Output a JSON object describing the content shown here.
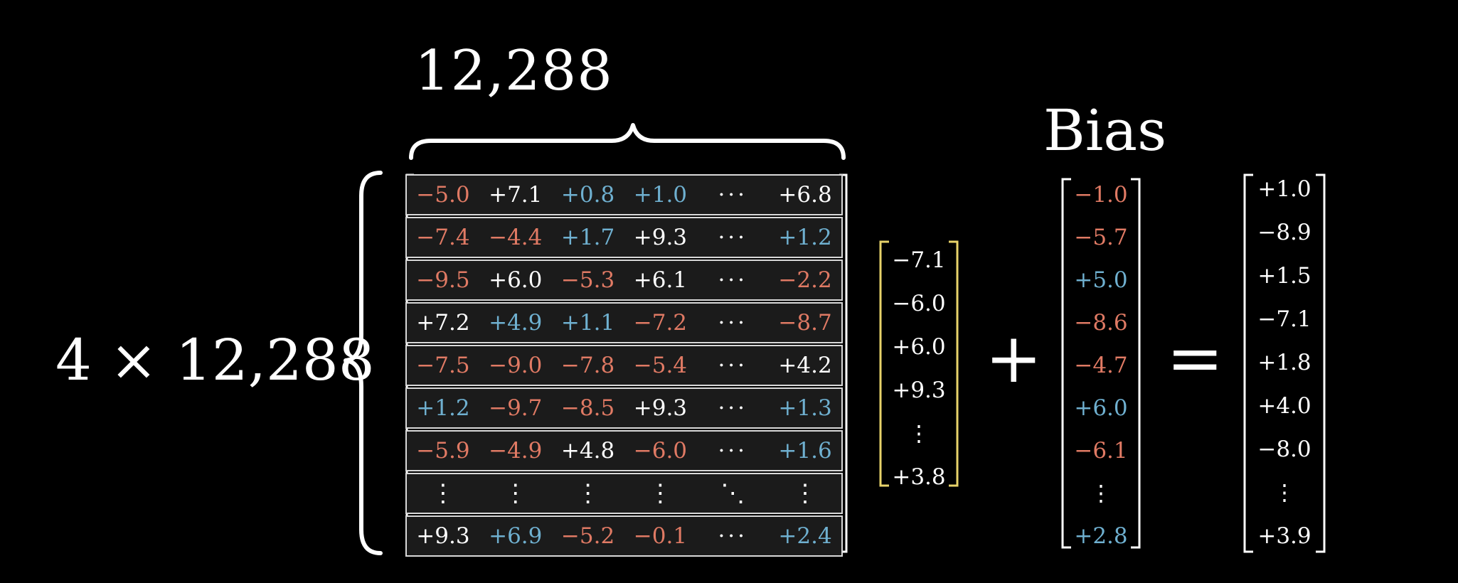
{
  "top_label": "12,288",
  "bias_label": "Bias",
  "dim_label": "4 × 12,288",
  "plus_sign": "+",
  "equals_sign": "=",
  "matrix_rows": [
    [
      {
        "t": "−5.0",
        "c": "neg"
      },
      {
        "t": "+7.1",
        "c": "posw"
      },
      {
        "t": "+0.8",
        "c": "pos"
      },
      {
        "t": "+1.0",
        "c": "pos"
      },
      {
        "t": "···",
        "c": "dots"
      },
      {
        "t": "+6.8",
        "c": "posw"
      }
    ],
    [
      {
        "t": "−7.4",
        "c": "neg"
      },
      {
        "t": "−4.4",
        "c": "neg"
      },
      {
        "t": "+1.7",
        "c": "pos"
      },
      {
        "t": "+9.3",
        "c": "posw"
      },
      {
        "t": "···",
        "c": "dots"
      },
      {
        "t": "+1.2",
        "c": "pos"
      }
    ],
    [
      {
        "t": "−9.5",
        "c": "neg"
      },
      {
        "t": "+6.0",
        "c": "posw"
      },
      {
        "t": "−5.3",
        "c": "neg"
      },
      {
        "t": "+6.1",
        "c": "posw"
      },
      {
        "t": "···",
        "c": "dots"
      },
      {
        "t": "−2.2",
        "c": "neg"
      }
    ],
    [
      {
        "t": "+7.2",
        "c": "posw"
      },
      {
        "t": "+4.9",
        "c": "pos"
      },
      {
        "t": "+1.1",
        "c": "pos"
      },
      {
        "t": "−7.2",
        "c": "neg"
      },
      {
        "t": "···",
        "c": "dots"
      },
      {
        "t": "−8.7",
        "c": "neg"
      }
    ],
    [
      {
        "t": "−7.5",
        "c": "neg"
      },
      {
        "t": "−9.0",
        "c": "neg"
      },
      {
        "t": "−7.8",
        "c": "neg"
      },
      {
        "t": "−5.4",
        "c": "neg"
      },
      {
        "t": "···",
        "c": "dots"
      },
      {
        "t": "+4.2",
        "c": "posw"
      }
    ],
    [
      {
        "t": "+1.2",
        "c": "pos"
      },
      {
        "t": "−9.7",
        "c": "neg"
      },
      {
        "t": "−8.5",
        "c": "neg"
      },
      {
        "t": "+9.3",
        "c": "posw"
      },
      {
        "t": "···",
        "c": "dots"
      },
      {
        "t": "+1.3",
        "c": "pos"
      }
    ],
    [
      {
        "t": "−5.9",
        "c": "neg"
      },
      {
        "t": "−4.9",
        "c": "neg"
      },
      {
        "t": "+4.8",
        "c": "posw"
      },
      {
        "t": "−6.0",
        "c": "neg"
      },
      {
        "t": "···",
        "c": "dots"
      },
      {
        "t": "+1.6",
        "c": "pos"
      }
    ],
    [
      {
        "t": "⋮",
        "c": "vdots"
      },
      {
        "t": "⋮",
        "c": "vdots"
      },
      {
        "t": "⋮",
        "c": "vdots"
      },
      {
        "t": "⋮",
        "c": "vdots"
      },
      {
        "t": "⋱",
        "c": "vdots"
      },
      {
        "t": "⋮",
        "c": "vdots"
      }
    ],
    [
      {
        "t": "+9.3",
        "c": "posw"
      },
      {
        "t": "+6.9",
        "c": "pos"
      },
      {
        "t": "−5.2",
        "c": "neg"
      },
      {
        "t": "−0.1",
        "c": "neg"
      },
      {
        "t": "···",
        "c": "dots"
      },
      {
        "t": "+2.4",
        "c": "pos"
      }
    ]
  ],
  "input_vector": [
    {
      "t": "−7.1",
      "c": "wht"
    },
    {
      "t": "−6.0",
      "c": "wht"
    },
    {
      "t": "+6.0",
      "c": "wht"
    },
    {
      "t": "+9.3",
      "c": "wht"
    },
    {
      "t": "⋮",
      "c": "wht"
    },
    {
      "t": "+3.8",
      "c": "wht"
    }
  ],
  "bias_vector": [
    {
      "t": "−1.0",
      "c": "neg"
    },
    {
      "t": "−5.7",
      "c": "neg"
    },
    {
      "t": "+5.0",
      "c": "pos"
    },
    {
      "t": "−8.6",
      "c": "neg"
    },
    {
      "t": "−4.7",
      "c": "neg"
    },
    {
      "t": "+6.0",
      "c": "pos"
    },
    {
      "t": "−6.1",
      "c": "neg"
    },
    {
      "t": "⋮",
      "c": "wht"
    },
    {
      "t": "+2.8",
      "c": "pos"
    }
  ],
  "output_vector": [
    {
      "t": "+1.0",
      "c": "wht"
    },
    {
      "t": "−8.9",
      "c": "wht"
    },
    {
      "t": "+1.5",
      "c": "wht"
    },
    {
      "t": "−7.1",
      "c": "wht"
    },
    {
      "t": "+1.8",
      "c": "wht"
    },
    {
      "t": "+4.0",
      "c": "wht"
    },
    {
      "t": "−8.0",
      "c": "wht"
    },
    {
      "t": "⋮",
      "c": "wht"
    },
    {
      "t": "+3.9",
      "c": "wht"
    }
  ],
  "colors": {
    "background": "#000000",
    "negative": "#e07a64",
    "positive": "#6fb0d0",
    "input_bracket": "#e8d36a",
    "white": "#ffffff"
  }
}
